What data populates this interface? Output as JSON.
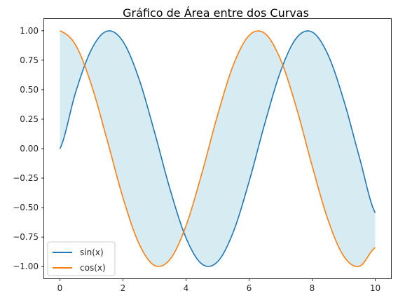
{
  "chart_data": {
    "type": "area",
    "title": "Gráfico de Área entre dos Curvas",
    "xlabel": "",
    "ylabel": "",
    "xlim": [
      -0.5,
      10.5
    ],
    "ylim": [
      -1.1,
      1.1
    ],
    "x_ticks": [
      0,
      2,
      4,
      6,
      8,
      10
    ],
    "x_tick_labels": [
      "0",
      "2",
      "4",
      "6",
      "8",
      "10"
    ],
    "y_ticks": [
      1.0,
      0.75,
      0.5,
      0.25,
      0.0,
      -0.25,
      -0.5,
      -0.75,
      -1.0
    ],
    "y_tick_labels": [
      "1.00",
      "0.75",
      "0.50",
      "0.25",
      "0.00",
      "−0.25",
      "−0.50",
      "−0.75",
      "−1.00"
    ],
    "x": [
      0,
      0.5,
      1,
      1.5,
      2,
      2.5,
      3,
      3.5,
      4,
      4.5,
      5,
      5.5,
      6,
      6.5,
      7,
      7.5,
      8,
      8.5,
      9,
      9.5,
      10
    ],
    "series": [
      {
        "name": "sin(x)",
        "color": "#1f77b4",
        "values": [
          0.0,
          0.479,
          0.841,
          0.997,
          0.909,
          0.598,
          0.141,
          -0.351,
          -0.757,
          -0.978,
          -0.959,
          -0.706,
          -0.279,
          0.215,
          0.657,
          0.938,
          0.989,
          0.798,
          0.412,
          -0.075,
          -0.544
        ]
      },
      {
        "name": "cos(x)",
        "color": "#ff7f0e",
        "values": [
          1.0,
          0.878,
          0.54,
          0.071,
          -0.416,
          -0.801,
          -0.99,
          -0.936,
          -0.654,
          -0.211,
          0.284,
          0.709,
          0.96,
          0.977,
          0.754,
          0.347,
          -0.146,
          -0.602,
          -0.911,
          -0.997,
          -0.839
        ]
      }
    ],
    "fill_between": {
      "series": [
        "sin(x)",
        "cos(x)"
      ],
      "color": "#add8e6",
      "opacity": 0.5
    },
    "legend": {
      "position": "lower-left",
      "entries": [
        "sin(x)",
        "cos(x)"
      ]
    },
    "grid": false
  }
}
